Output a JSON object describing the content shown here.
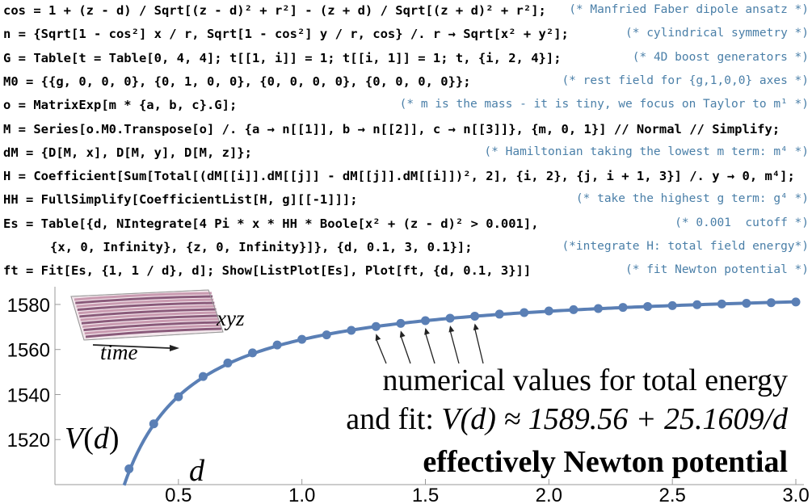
{
  "code_lines": [
    {
      "src": "cos = 1 + (z - d) / Sqrt[(z - d)² + r²] - (z + d) / Sqrt[(z + d)² + r²];",
      "comment": "(* Manfried Faber dipole ansatz *)"
    },
    {
      "src": "n = {Sqrt[1 - cos²] x / r, Sqrt[1 - cos²] y / r, cos} /. r → Sqrt[x² + y²];",
      "comment": "(* cylindrical symmetry *)"
    },
    {
      "src": "G = Table[t = Table[0, 4, 4]; t[[1, i]] = 1; t[[i, 1]] = 1; t, {i, 2, 4}];",
      "comment": "(* 4D boost generators *)"
    },
    {
      "src": "M0 = {{g, 0, 0, 0}, {0, 1, 0, 0}, {0, 0, 0, 0}, {0, 0, 0, 0}};",
      "comment": "(* rest field for {g,1,0,0} axes *)"
    },
    {
      "src": "o = MatrixExp[m * {a, b, c}.G];",
      "comment": "(* m is the mass - it is tiny, we focus on Taylor to m¹ *)"
    },
    {
      "src": "M = Series[o.M0.Transpose[o] /. {a → n[[1]], b → n[[2]], c → n[[3]]}, {m, 0, 1}] // Normal // Simplify;",
      "comment": ""
    },
    {
      "src": "dM = {D[M, x], D[M, y], D[M, z]};",
      "comment": "(* Hamiltonian taking the lowest m term: m⁴ *)"
    },
    {
      "src": "H = Coefficient[Sum[Total[(dM[[i]].dM[[j]] - dM[[j]].dM[[i]])², 2], {i, 2}, {j, i + 1, 3}] /. y → 0, m⁴];",
      "comment": ""
    },
    {
      "src": "HH = FullSimplify[CoefficientList[H, g][[-1]]];",
      "comment": "(* take the highest g term: g⁴ *)"
    },
    {
      "src": "Es = Table[{d, NIntegrate[4 Pi * x * HH * Boole[x² + (z - d)² > 0.001],",
      "comment": "(* 0.001  cutoff *)"
    },
    {
      "src": "{x, 0, Infinity}, {z, 0, Infinity}]}, {d, 0.1, 3, 0.1}];",
      "comment": "(*integrate H: total field energy*)",
      "cont": true
    },
    {
      "src": "ft = Fit[Es, {1, 1 / d}, d]; Show[ListPlot[Es], Plot[ft, {d, 0.1, 3}]]",
      "comment": "(* fit Newton potential *)"
    }
  ],
  "chart_data": {
    "type": "scatter",
    "x": [
      0.3,
      0.4,
      0.5,
      0.6,
      0.7,
      0.8,
      0.9,
      1.0,
      1.1,
      1.2,
      1.3,
      1.4,
      1.5,
      1.6,
      1.7,
      1.8,
      1.9,
      2.0,
      2.1,
      2.2,
      2.3,
      2.4,
      2.5,
      2.6,
      2.7,
      2.8,
      2.9,
      3.0
    ],
    "y": [
      1507.0,
      1527.0,
      1539.0,
      1548.0,
      1554.0,
      1558.5,
      1562.0,
      1564.5,
      1566.5,
      1568.5,
      1570.2,
      1571.6,
      1572.8,
      1573.9,
      1574.8,
      1575.7,
      1576.4,
      1577.1,
      1577.7,
      1578.2,
      1578.7,
      1579.1,
      1579.5,
      1579.9,
      1580.2,
      1580.5,
      1580.8,
      1581.1
    ],
    "fit": {
      "a": 1589.56,
      "b": 25.1609,
      "x_from": 0.28,
      "x_to": 3.0
    },
    "xlim": [
      0.0,
      3.0
    ],
    "ylim": [
      1500,
      1585
    ],
    "x_ticks": [
      "0.5",
      "1.0",
      "1.5",
      "2.0",
      "2.5",
      "3.0"
    ],
    "y_ticks": [
      "1520",
      "1540",
      "1560",
      "1580"
    ],
    "grid": false,
    "color": "#5a7fb5"
  },
  "annotations": {
    "ylabel": "V(d)",
    "xlabel": "d",
    "line1": "numerical values for total energy",
    "line2_prefix": "and fit: ",
    "line2_formula": "V(d) ≈ 1589.56 + 25.1609/d",
    "line3": "effectively Newton potential",
    "inset_xyz": "xyz",
    "inset_time": "time",
    "arrow_points_x": [
      1.3,
      1.4,
      1.5,
      1.6,
      1.7
    ]
  }
}
